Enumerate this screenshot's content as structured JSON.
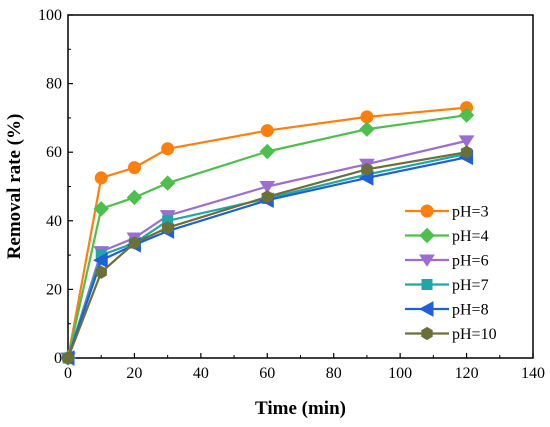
{
  "chart_data": {
    "type": "line",
    "title": "",
    "xlabel": "Time (min)",
    "ylabel": "Removal rate (%)",
    "xlim": [
      0,
      140
    ],
    "ylim": [
      0,
      100
    ],
    "xticks": [
      "0",
      "20",
      "40",
      "60",
      "80",
      "100",
      "120",
      "140"
    ],
    "yticks": [
      "0",
      "20",
      "40",
      "60",
      "80",
      "100"
    ],
    "grid": false,
    "legend_position": "bottom-right",
    "x": [
      0,
      10,
      20,
      30,
      60,
      90,
      120
    ],
    "series": [
      {
        "name": "pH=3",
        "color": "#FF7F0E",
        "marker": "circle",
        "values": [
          0,
          52.5,
          55.5,
          61.0,
          66.3,
          70.3,
          73.0
        ]
      },
      {
        "name": "pH=4",
        "color": "#4CBF4C",
        "marker": "diamond",
        "values": [
          0,
          43.5,
          46.8,
          51.0,
          60.2,
          66.7,
          70.8
        ]
      },
      {
        "name": "pH=6",
        "color": "#9A6FD0",
        "marker": "triangle-down",
        "values": [
          0,
          31.0,
          35.0,
          41.5,
          50.0,
          56.5,
          63.3
        ]
      },
      {
        "name": "pH=7",
        "color": "#1FA6A6",
        "marker": "square",
        "values": [
          0,
          30.0,
          33.5,
          40.0,
          46.5,
          53.5,
          59.5
        ]
      },
      {
        "name": "pH=8",
        "color": "#1F5FD8",
        "marker": "triangle-left",
        "values": [
          0,
          28.5,
          33.0,
          37.0,
          46.0,
          52.5,
          58.5
        ]
      },
      {
        "name": "pH=10",
        "color": "#6B7039",
        "marker": "hexagon",
        "values": [
          0,
          25.0,
          33.5,
          38.0,
          47.0,
          55.0,
          60.0
        ]
      }
    ]
  }
}
